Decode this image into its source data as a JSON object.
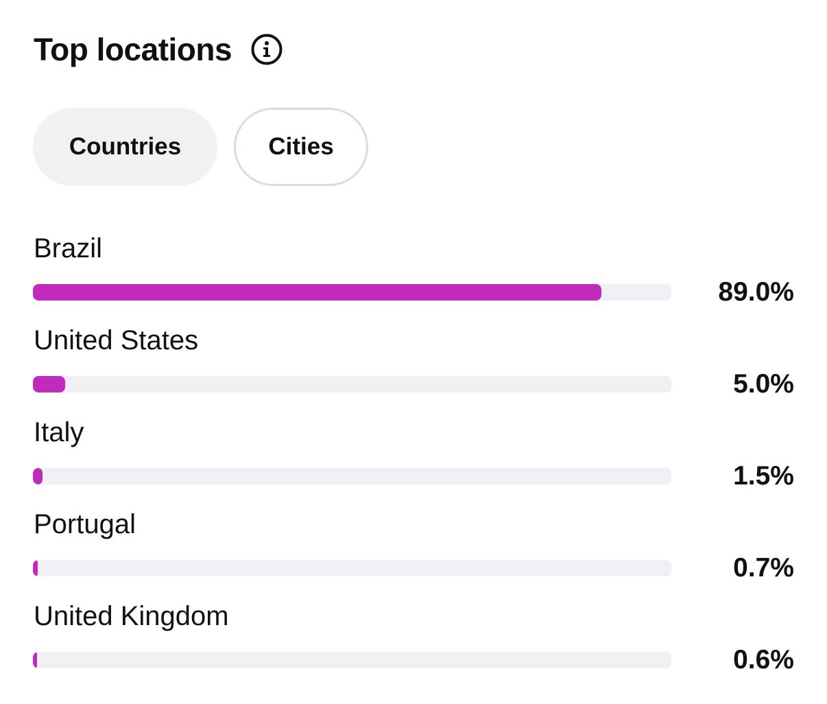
{
  "header": {
    "title": "Top locations",
    "info_icon": "info-icon"
  },
  "tabs": [
    {
      "label": "Countries",
      "active": true
    },
    {
      "label": "Cities",
      "active": false
    }
  ],
  "accent_color": "#c02bbb",
  "track_color": "#f0f0f4",
  "locations": [
    {
      "name": "Brazil",
      "percent_label": "89.0%",
      "value": 89.0
    },
    {
      "name": "United States",
      "percent_label": "5.0%",
      "value": 5.0
    },
    {
      "name": "Italy",
      "percent_label": "1.5%",
      "value": 1.5
    },
    {
      "name": "Portugal",
      "percent_label": "0.7%",
      "value": 0.7
    },
    {
      "name": "United Kingdom",
      "percent_label": "0.6%",
      "value": 0.6
    }
  ]
}
